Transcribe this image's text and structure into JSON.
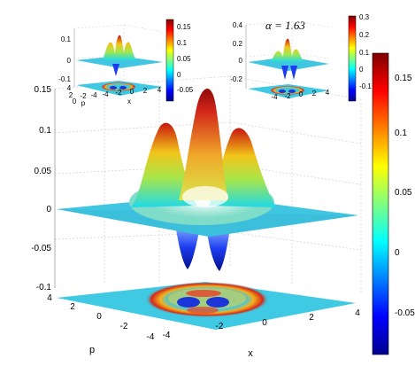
{
  "annotation": {
    "alpha_text": "α = 1.63"
  },
  "chart_data": [
    {
      "type": "surface",
      "role": "main",
      "title": "",
      "xlabel": "x",
      "ylabel": "p",
      "x_ticks": [
        "-4",
        "-2",
        "0",
        "2",
        "4"
      ],
      "p_ticks": [
        "-4",
        "-2",
        "0",
        "2",
        "4"
      ],
      "z_ticks": [
        "-0.1",
        "-0.05",
        "0",
        "0.05",
        "0.1",
        "0.15"
      ],
      "xlim": [
        -4,
        4
      ],
      "plim": [
        -4,
        4
      ],
      "zlim": [
        -0.1,
        0.15
      ],
      "clim": [
        -0.08,
        0.17
      ],
      "colorbar_ticks": [
        "0.15",
        "0.1",
        "0.05",
        "0",
        "-0.05"
      ],
      "colormap": "jet",
      "peaks": [
        {
          "x": 0.0,
          "p": 1.0,
          "z": 0.16
        },
        {
          "x": -1.4,
          "p": 0.2,
          "z": 0.105
        },
        {
          "x": 1.4,
          "p": 0.2,
          "z": 0.095
        }
      ],
      "dips": [
        {
          "x": -0.7,
          "p": -0.9,
          "z": -0.07
        },
        {
          "x": 0.7,
          "p": -0.9,
          "z": -0.07
        }
      ],
      "projection": "contour map of the surface drawn on the plane z = -0.1",
      "grid": true
    },
    {
      "type": "surface",
      "role": "inset-left",
      "xlabel": "x",
      "ylabel": "p",
      "x_ticks": [
        "-4",
        "-2",
        "0",
        "2",
        "4"
      ],
      "p_ticks": [
        "-4",
        "-2",
        "0",
        "2",
        "4"
      ],
      "z_ticks": [
        "0",
        "0.1",
        "-0.1"
      ],
      "colorbar_ticks": [
        "0.15",
        "0.1",
        "0.05",
        "0",
        "-0.05"
      ],
      "colormap": "jet"
    },
    {
      "type": "surface",
      "role": "inset-right",
      "x_ticks": [
        "-4",
        "-2",
        "0",
        "2",
        "4"
      ],
      "z_ticks": [
        "0.4",
        "0.2",
        "0",
        "-0.2"
      ],
      "colorbar_ticks": [
        "0.3",
        "0.2",
        "0.1",
        "0",
        "-0.1"
      ],
      "colormap": "jet"
    }
  ]
}
